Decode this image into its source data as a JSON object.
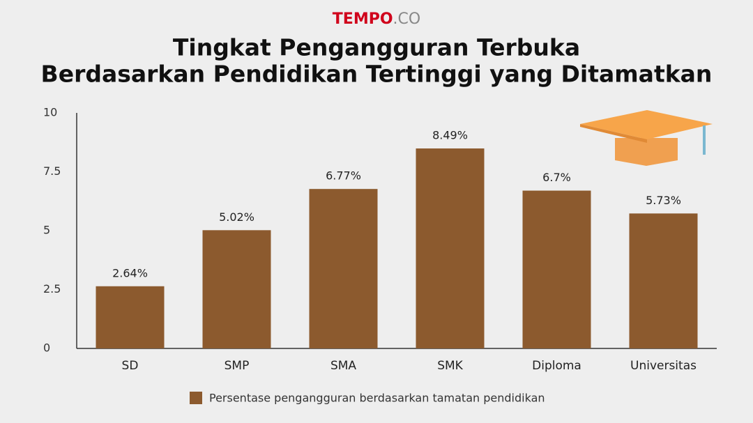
{
  "chart_data": {
    "type": "bar",
    "brand": {
      "name": "TEMPO",
      "suffix": ".CO"
    },
    "title": [
      "Tingkat Pengangguran Terbuka",
      "Berdasarkan Pendidikan Tertinggi yang Ditamatkan"
    ],
    "categories": [
      "SD",
      "SMP",
      "SMA",
      "SMK",
      "Diploma",
      "Universitas"
    ],
    "series": [
      {
        "name": "Persentase pengangguran berdasarkan tamatan pendidikan",
        "color": "#8c5a2e",
        "values": [
          2.64,
          5.02,
          6.77,
          8.49,
          6.7,
          5.73
        ],
        "value_labels": [
          "2.64%",
          "5.02%",
          "6.77%",
          "8.49%",
          "6.7%",
          "5.73%"
        ]
      }
    ],
    "ylim": [
      0,
      10
    ],
    "yticks": [
      0,
      2.5,
      5,
      7.5,
      10
    ],
    "grid": false
  }
}
